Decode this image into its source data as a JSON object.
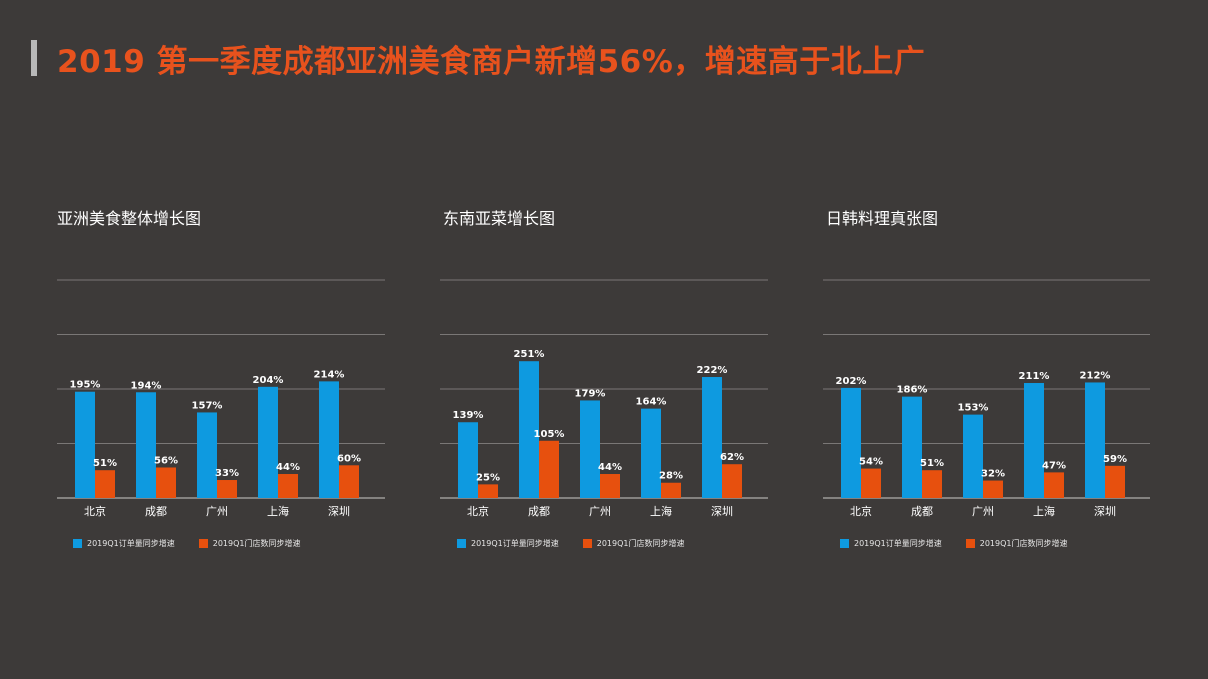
{
  "title": "2019 第一季度成都亚洲美食商户新增56%，增速高于北上广",
  "colors": {
    "series1": "#0e9ae0",
    "series2": "#e7500e",
    "grid": "#7a7776",
    "axis": "#b0adac"
  },
  "chart_data": [
    {
      "type": "bar",
      "title": "亚洲美食整体增长图",
      "categories": [
        "北京",
        "成都",
        "广州",
        "上海",
        "深圳"
      ],
      "ylim": [
        0,
        400
      ],
      "series": [
        {
          "name": "2019Q1订单量同步增速",
          "values": [
            195,
            194,
            157,
            204,
            214
          ],
          "labels": [
            "195%",
            "194%",
            "157%",
            "204%",
            "214%"
          ]
        },
        {
          "name": "2019Q1门店数同步增速",
          "values": [
            51,
            56,
            33,
            44,
            60
          ],
          "labels": [
            "51%",
            "56%",
            "33%",
            "44%",
            "60%"
          ]
        }
      ]
    },
    {
      "type": "bar",
      "title": "东南亚菜增长图",
      "categories": [
        "北京",
        "成都",
        "广州",
        "上海",
        "深圳"
      ],
      "ylim": [
        0,
        400
      ],
      "series": [
        {
          "name": "2019Q1订单量同步增速",
          "values": [
            139,
            251,
            179,
            164,
            222
          ],
          "labels": [
            "139%",
            "251%",
            "179%",
            "164%",
            "222%"
          ]
        },
        {
          "name": "2019Q1门店数同步增速",
          "values": [
            25,
            105,
            44,
            28,
            62
          ],
          "labels": [
            "25%",
            "105%",
            "44%",
            "28%",
            "62%"
          ]
        }
      ]
    },
    {
      "type": "bar",
      "title": "日韩料理真张图",
      "categories": [
        "北京",
        "成都",
        "广州",
        "上海",
        "深圳"
      ],
      "ylim": [
        0,
        400
      ],
      "series": [
        {
          "name": "2019Q1订单量同步增速",
          "values": [
            202,
            186,
            153,
            211,
            212
          ],
          "labels": [
            "202%",
            "186%",
            "153%",
            "211%",
            "212%"
          ]
        },
        {
          "name": "2019Q1门店数同步增速",
          "values": [
            54,
            51,
            32,
            47,
            59
          ],
          "labels": [
            "54%",
            "51%",
            "32%",
            "47%",
            "59%"
          ]
        }
      ]
    }
  ]
}
